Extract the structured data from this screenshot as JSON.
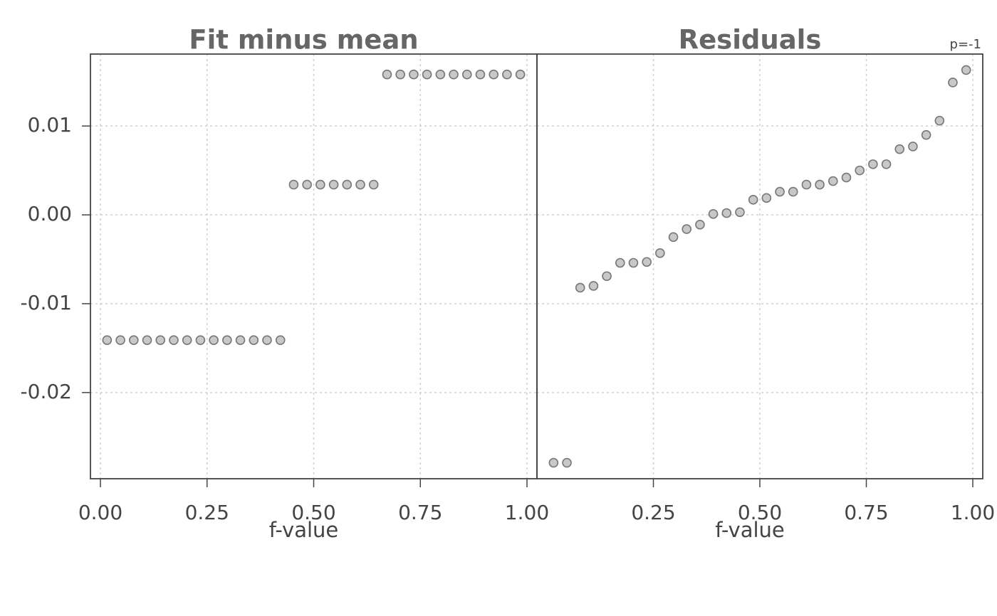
{
  "chart_data": [
    {
      "type": "scatter",
      "title": "Fit minus mean",
      "xlabel": "f-value",
      "x": [
        0.0156,
        0.0469,
        0.0781,
        0.1094,
        0.1406,
        0.1719,
        0.2031,
        0.2344,
        0.2656,
        0.2969,
        0.3281,
        0.3594,
        0.3906,
        0.4219,
        0.4531,
        0.4844,
        0.5156,
        0.5469,
        0.5781,
        0.6094,
        0.6406,
        0.6719,
        0.7031,
        0.7344,
        0.7656,
        0.7969,
        0.8281,
        0.8594,
        0.8906,
        0.9219,
        0.9531,
        0.9844
      ],
      "values": [
        -0.0141,
        -0.0141,
        -0.0141,
        -0.0141,
        -0.0141,
        -0.0141,
        -0.0141,
        -0.0141,
        -0.0141,
        -0.0141,
        -0.0141,
        -0.0141,
        -0.0141,
        -0.0141,
        0.0034,
        0.0034,
        0.0034,
        0.0034,
        0.0034,
        0.0034,
        0.0034,
        0.0158,
        0.0158,
        0.0158,
        0.0158,
        0.0158,
        0.0158,
        0.0158,
        0.0158,
        0.0158,
        0.0158,
        0.0158
      ],
      "color": "#c8c8c8",
      "xlim": [
        -0.0234,
        1.0234
      ],
      "ylim": [
        -0.0297,
        0.0181
      ],
      "xticks": [
        {
          "value": 0,
          "label": "0.00"
        },
        0.25,
        {
          "value": 0.5,
          "label": "0.50"
        },
        0.75,
        {
          "value": 1,
          "label": "1.00"
        }
      ],
      "yticks": [
        {
          "value": -0.02,
          "label": "-0.02"
        },
        {
          "value": -0.01,
          "label": "-0.01"
        },
        {
          "value": 0,
          "label": "0.00"
        },
        {
          "value": 0.01,
          "label": "0.01"
        }
      ],
      "grid": true
    },
    {
      "type": "scatter",
      "title": "Residuals",
      "xlabel": "f-value",
      "annotation": "p=-1",
      "x": [
        0.0156,
        0.0469,
        0.0781,
        0.1094,
        0.1406,
        0.1719,
        0.2031,
        0.2344,
        0.2656,
        0.2969,
        0.3281,
        0.3594,
        0.3906,
        0.4219,
        0.4531,
        0.4844,
        0.5156,
        0.5469,
        0.5781,
        0.6094,
        0.6406,
        0.6719,
        0.7031,
        0.7344,
        0.7656,
        0.7969,
        0.8281,
        0.8594,
        0.8906,
        0.9219,
        0.9531,
        0.9844
      ],
      "values": [
        -0.0279,
        -0.0279,
        -0.0082,
        -0.008,
        -0.0069,
        -0.0054,
        -0.0054,
        -0.0053,
        -0.0043,
        -0.0025,
        -0.0016,
        -0.0011,
        0.0001,
        0.0002,
        0.0003,
        0.0017,
        0.0019,
        0.0026,
        0.0026,
        0.0034,
        0.0034,
        0.0038,
        0.0042,
        0.005,
        0.0057,
        0.0057,
        0.0074,
        0.0077,
        0.009,
        0.0106,
        0.0149,
        0.0163
      ],
      "color": "#c8c8c8",
      "xlim": [
        -0.0234,
        1.0234
      ],
      "ylim": [
        -0.0297,
        0.0181
      ],
      "xticks": [
        0.25,
        {
          "value": 0.5,
          "label": "0.50"
        },
        0.75,
        {
          "value": 1,
          "label": "1.00"
        }
      ],
      "grid": true
    }
  ]
}
